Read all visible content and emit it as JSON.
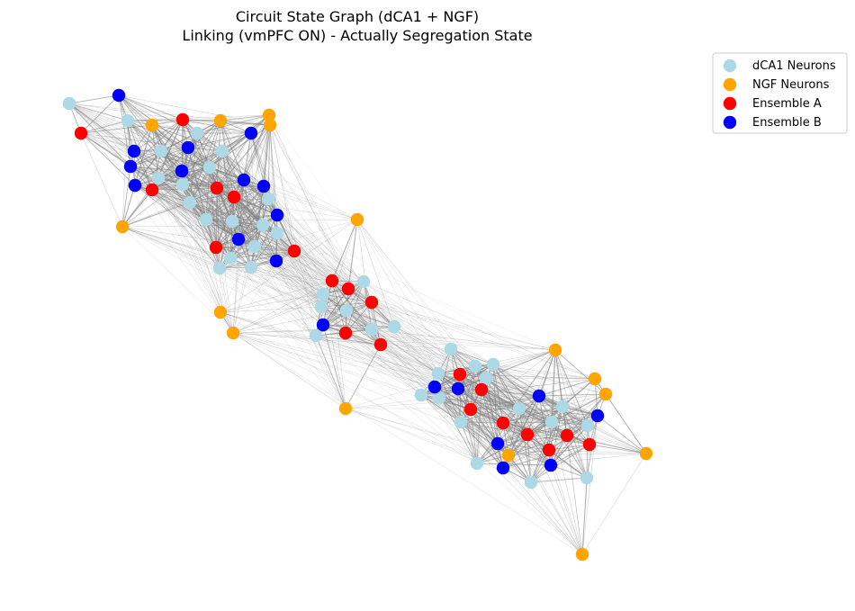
{
  "chart_data": {
    "type": "network",
    "title": "Circuit State Graph (dCA1 + NGF)",
    "subtitle": "Linking (vmPFC ON) - Actually Segregation State",
    "legend": {
      "placement": "top-right",
      "entries": [
        {
          "label": "dCA1 Neurons",
          "color": "#add8e6"
        },
        {
          "label": "NGF Neurons",
          "color": "#ffa500"
        },
        {
          "label": "Ensemble A",
          "color": "#ff0000"
        },
        {
          "label": "Ensemble B",
          "color": "#0000ff"
        }
      ]
    },
    "edge_color": "#808080",
    "clusters": [
      {
        "name": "cluster-1",
        "nodes": [
          [
            77,
            115,
            "dCA1"
          ],
          [
            142,
            134,
            "dCA1"
          ],
          [
            179,
            168,
            "dCA1"
          ],
          [
            176,
            198,
            "dCA1"
          ],
          [
            203,
            205,
            "dCA1"
          ],
          [
            219,
            148,
            "dCA1"
          ],
          [
            247,
            168,
            "dCA1"
          ],
          [
            233,
            186,
            "dCA1"
          ],
          [
            211,
            225,
            "dCA1"
          ],
          [
            229,
            244,
            "dCA1"
          ],
          [
            258,
            246,
            "dCA1"
          ],
          [
            292,
            250,
            "dCA1"
          ],
          [
            298,
            221,
            "dCA1"
          ],
          [
            308,
            259,
            "dCA1"
          ],
          [
            283,
            274,
            "dCA1"
          ],
          [
            256,
            287,
            "dCA1"
          ],
          [
            279,
            297,
            "dCA1"
          ],
          [
            244,
            298,
            "dCA1"
          ],
          [
            169,
            139,
            "NGF"
          ],
          [
            245,
            134,
            "NGF"
          ],
          [
            299,
            128,
            "NGF"
          ],
          [
            300,
            139,
            "NGF"
          ],
          [
            136,
            252,
            "NGF"
          ],
          [
            90,
            148,
            "A"
          ],
          [
            203,
            133,
            "A"
          ],
          [
            241,
            209,
            "A"
          ],
          [
            260,
            219,
            "A"
          ],
          [
            169,
            211,
            "A"
          ],
          [
            240,
            275,
            "A"
          ],
          [
            327,
            279,
            "A"
          ],
          [
            132,
            106,
            "B"
          ],
          [
            279,
            148,
            "B"
          ],
          [
            149,
            168,
            "B"
          ],
          [
            209,
            164,
            "B"
          ],
          [
            145,
            185,
            "B"
          ],
          [
            202,
            190,
            "B"
          ],
          [
            150,
            206,
            "B"
          ],
          [
            271,
            200,
            "B"
          ],
          [
            293,
            207,
            "B"
          ],
          [
            308,
            239,
            "B"
          ],
          [
            265,
            266,
            "B"
          ],
          [
            307,
            290,
            "B"
          ]
        ]
      },
      {
        "name": "cluster-2",
        "nodes": [
          [
            404,
            313,
            "dCA1"
          ],
          [
            359,
            327,
            "dCA1"
          ],
          [
            357,
            341,
            "dCA1"
          ],
          [
            385,
            345,
            "dCA1"
          ],
          [
            413,
            366,
            "dCA1"
          ],
          [
            438,
            363,
            "dCA1"
          ],
          [
            351,
            373,
            "dCA1"
          ],
          [
            397,
            244,
            "NGF"
          ],
          [
            245,
            347,
            "NGF"
          ],
          [
            259,
            370,
            "NGF"
          ],
          [
            384,
            454,
            "NGF"
          ],
          [
            369,
            312,
            "A"
          ],
          [
            387,
            321,
            "A"
          ],
          [
            413,
            336,
            "A"
          ],
          [
            384,
            370,
            "A"
          ],
          [
            423,
            383,
            "A"
          ],
          [
            359,
            361,
            "B"
          ]
        ]
      },
      {
        "name": "cluster-3",
        "nodes": [
          [
            501,
            388,
            "dCA1"
          ],
          [
            528,
            407,
            "dCA1"
          ],
          [
            548,
            405,
            "dCA1"
          ],
          [
            540,
            420,
            "dCA1"
          ],
          [
            487,
            415,
            "dCA1"
          ],
          [
            468,
            439,
            "dCA1"
          ],
          [
            488,
            442,
            "dCA1"
          ],
          [
            577,
            454,
            "dCA1"
          ],
          [
            625,
            452,
            "dCA1"
          ],
          [
            613,
            469,
            "dCA1"
          ],
          [
            653,
            473,
            "dCA1"
          ],
          [
            512,
            469,
            "dCA1"
          ],
          [
            530,
            515,
            "dCA1"
          ],
          [
            590,
            536,
            "dCA1"
          ],
          [
            652,
            531,
            "dCA1"
          ],
          [
            617,
            389,
            "NGF"
          ],
          [
            661,
            421,
            "NGF"
          ],
          [
            673,
            438,
            "NGF"
          ],
          [
            565,
            506,
            "NGF"
          ],
          [
            718,
            504,
            "NGF"
          ],
          [
            647,
            616,
            "NGF"
          ],
          [
            511,
            416,
            "A"
          ],
          [
            535,
            433,
            "A"
          ],
          [
            523,
            455,
            "A"
          ],
          [
            559,
            470,
            "A"
          ],
          [
            586,
            483,
            "A"
          ],
          [
            630,
            484,
            "A"
          ],
          [
            655,
            494,
            "A"
          ],
          [
            610,
            500,
            "A"
          ],
          [
            483,
            430,
            "B"
          ],
          [
            509,
            432,
            "B"
          ],
          [
            599,
            440,
            "B"
          ],
          [
            664,
            462,
            "B"
          ],
          [
            553,
            493,
            "B"
          ],
          [
            559,
            520,
            "B"
          ],
          [
            612,
            517,
            "B"
          ]
        ]
      }
    ]
  }
}
